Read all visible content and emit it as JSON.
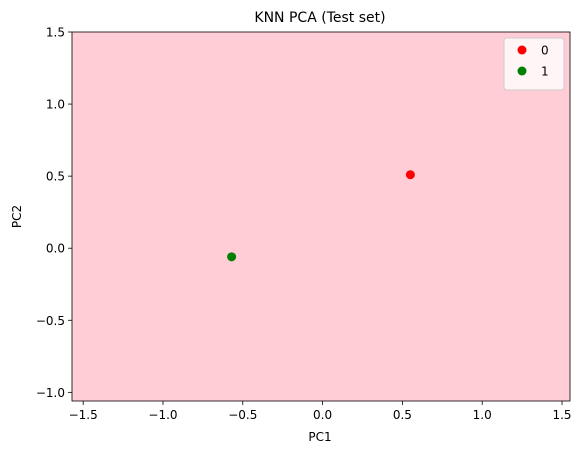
{
  "chart_data": {
    "type": "scatter",
    "title": "KNN PCA (Test set)",
    "xlabel": "PC1",
    "ylabel": "PC2",
    "xlim": [
      -1.57,
      1.55
    ],
    "ylim": [
      -1.06,
      1.5
    ],
    "xticks": [
      -1.5,
      -1.0,
      -0.5,
      0.0,
      0.5,
      1.0,
      1.5
    ],
    "xtick_labels": [
      "−1.5",
      "−1.0",
      "−0.5",
      "0.0",
      "0.5",
      "1.0",
      "1.5"
    ],
    "yticks": [
      -1.0,
      -0.5,
      0.0,
      0.5,
      1.0,
      1.5
    ],
    "ytick_labels": [
      "−1.0",
      "−0.5",
      "0.0",
      "0.5",
      "1.0",
      "1.5"
    ],
    "grid": false,
    "background_color": "#ffcdd6",
    "legend_position": "top-right",
    "series": [
      {
        "name": "0",
        "color": "#ff0000",
        "points": [
          {
            "x": 0.55,
            "y": 0.51
          }
        ]
      },
      {
        "name": "1",
        "color": "#008000",
        "points": [
          {
            "x": -0.57,
            "y": -0.06
          }
        ]
      }
    ]
  }
}
